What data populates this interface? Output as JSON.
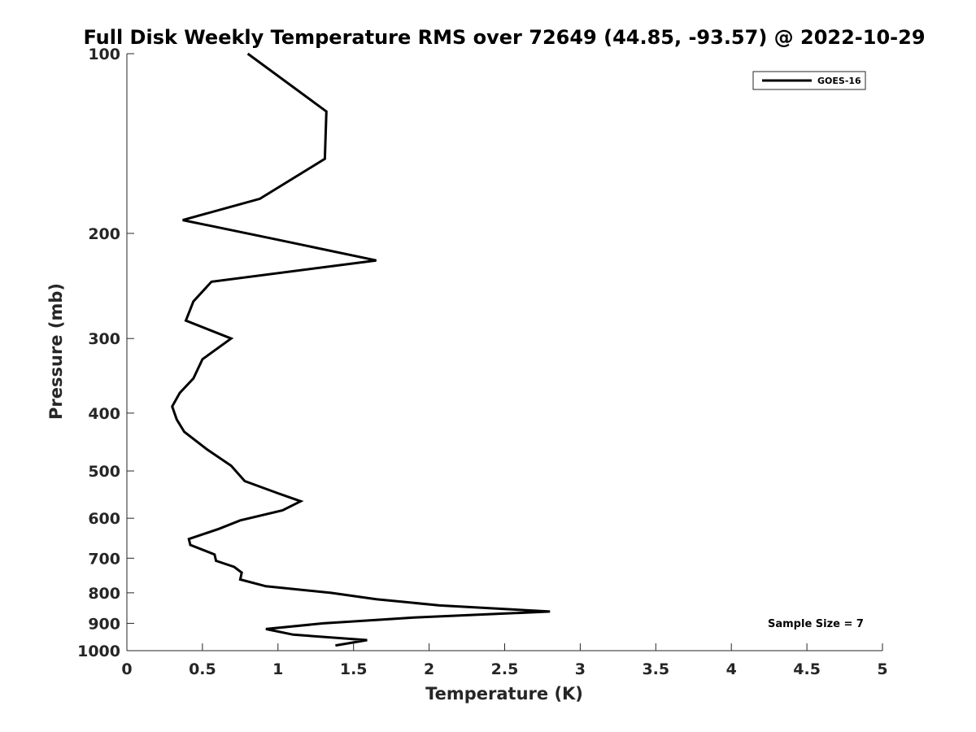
{
  "chart_data": {
    "type": "line",
    "title": "Full Disk Weekly Temperature RMS over 72649 (44.85, -93.57) @ 2022-10-29",
    "xlabel": "Temperature (K)",
    "ylabel": "Pressure (mb)",
    "xlim": [
      0,
      5
    ],
    "ylim": [
      100,
      1000
    ],
    "yscale": "log",
    "y_reversed": true,
    "x_ticks": [
      0,
      0.5,
      1,
      1.5,
      2,
      2.5,
      3,
      3.5,
      4,
      4.5,
      5
    ],
    "x_tick_labels": [
      "0",
      "0.5",
      "1",
      "1.5",
      "2",
      "2.5",
      "3",
      "3.5",
      "4",
      "4.5",
      "5"
    ],
    "y_ticks": [
      100,
      200,
      300,
      400,
      500,
      600,
      700,
      800,
      900,
      1000
    ],
    "y_tick_labels": [
      "100",
      "200",
      "300",
      "400",
      "500",
      "600",
      "700",
      "800",
      "900",
      "1000"
    ],
    "grid": false,
    "legend_position": "top-right",
    "series": [
      {
        "name": "GOES-16",
        "color": "#000000",
        "x": [
          0.8,
          1.32,
          1.31,
          0.88,
          0.37,
          1.0,
          1.65,
          0.56,
          0.44,
          0.39,
          0.69,
          0.5,
          0.44,
          0.35,
          0.3,
          0.33,
          0.38,
          0.53,
          0.69,
          0.78,
          1.0,
          1.15,
          1.03,
          0.75,
          0.61,
          0.41,
          0.42,
          0.58,
          0.59,
          0.71,
          0.76,
          0.75,
          0.92,
          1.35,
          1.65,
          2.07,
          2.8,
          1.9,
          1.3,
          0.92,
          1.1,
          1.59,
          1.38
        ],
        "y": [
          100,
          125,
          150,
          175,
          190,
          205,
          222,
          241,
          260,
          280,
          300,
          325,
          350,
          370,
          390,
          410,
          430,
          460,
          490,
          520,
          545,
          562,
          582,
          605,
          625,
          650,
          665,
          690,
          707,
          724,
          740,
          760,
          780,
          800,
          820,
          840,
          860,
          880,
          900,
          920,
          940,
          960,
          980
        ]
      }
    ],
    "annotations": [
      {
        "text": "Sample Size = 7",
        "position": "bottom-right"
      }
    ]
  }
}
